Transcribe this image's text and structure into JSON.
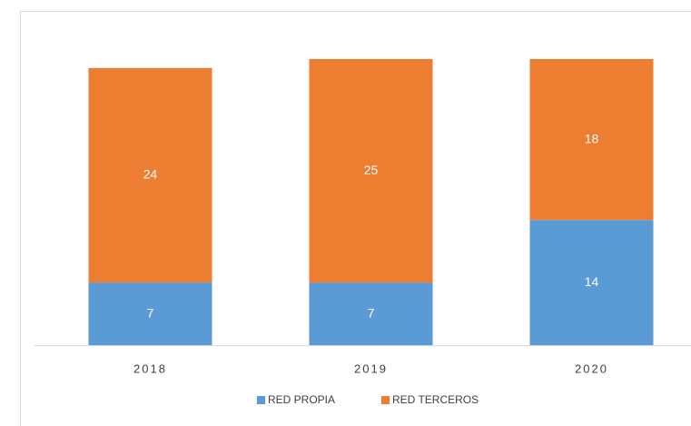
{
  "chart_data": {
    "type": "stacked_bar",
    "categories": [
      "2018",
      "2019",
      "2020"
    ],
    "series": [
      {
        "name": "RED PROPIA",
        "color": "#5b9bd5",
        "values": [
          7,
          7,
          14
        ]
      },
      {
        "name": "RED TERCEROS",
        "color": "#ed7d31",
        "values": [
          24,
          25,
          18
        ]
      }
    ]
  }
}
